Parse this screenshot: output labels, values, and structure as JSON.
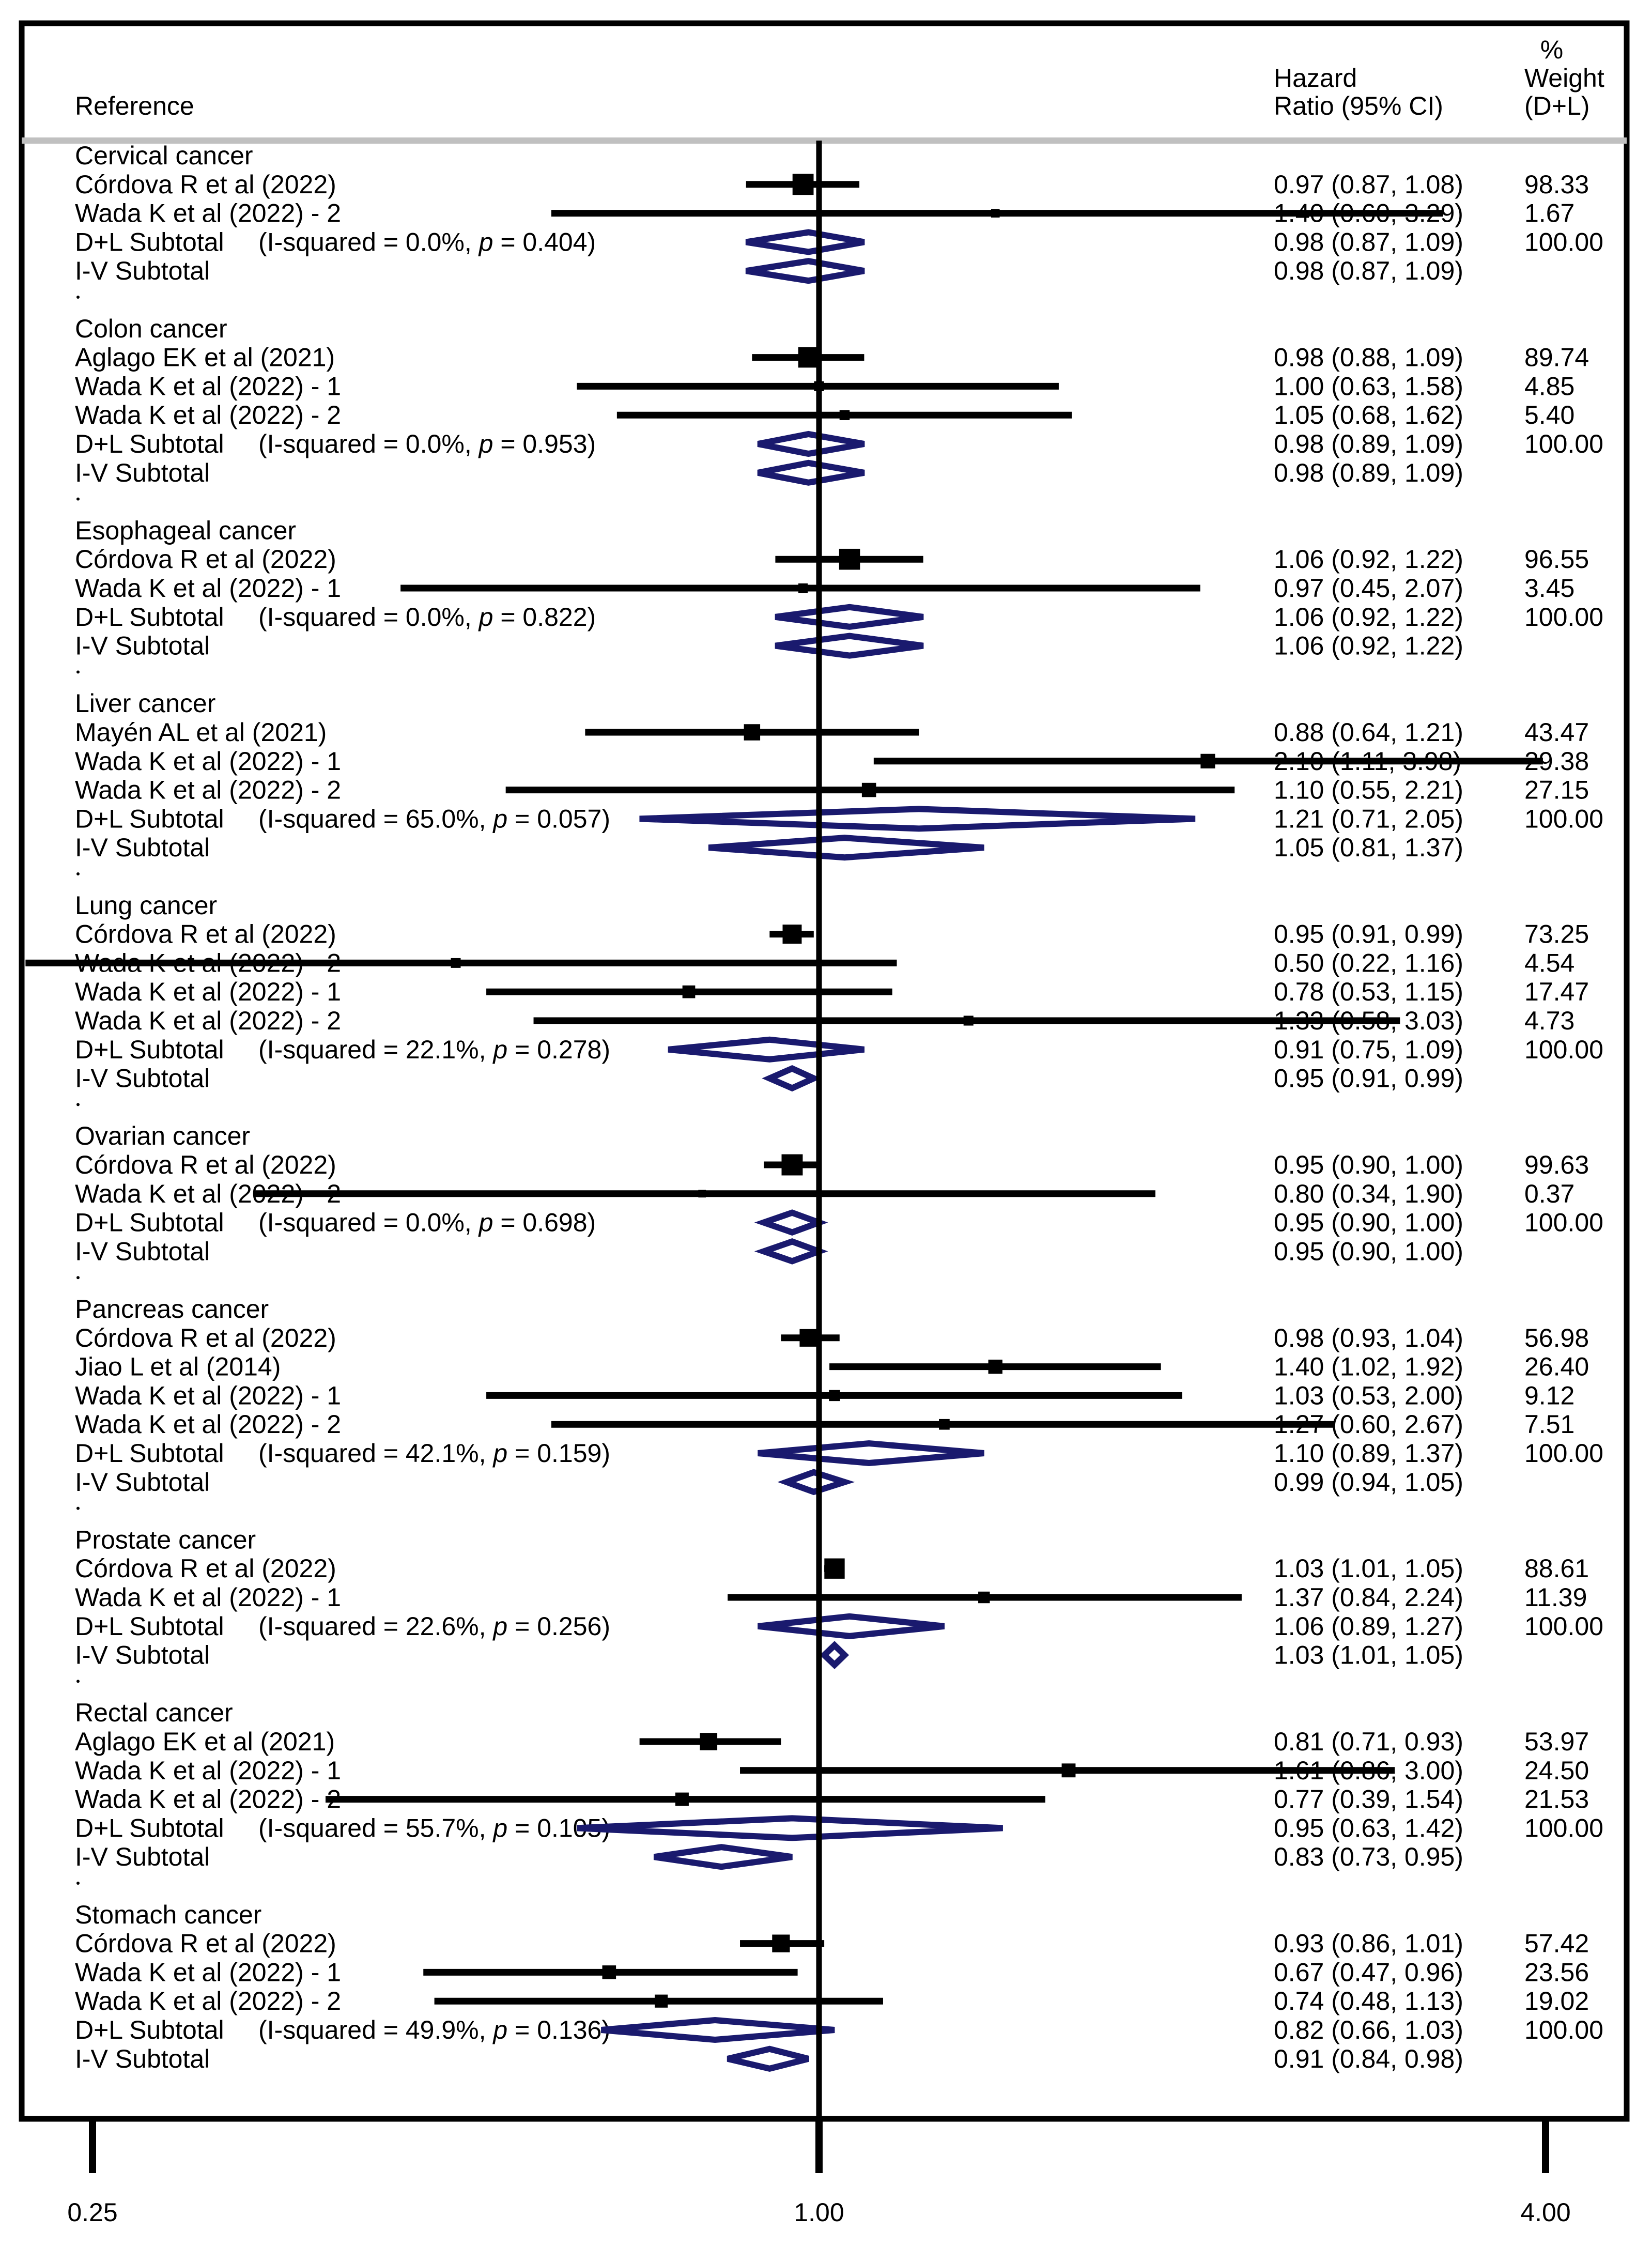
{
  "chart_data": {
    "type": "forest",
    "scale": "log",
    "null_value": 1.0,
    "x_ticks": [
      0.25,
      1.0,
      4.0
    ],
    "x_tick_labels": [
      "0.25",
      "1.00",
      "4.00"
    ],
    "xlim": [
      0.2,
      5.0
    ],
    "colors": {
      "study": "#000000",
      "diamond": "#1a1a6e",
      "frame": "#000000",
      "separator": "#c0c0c0"
    },
    "headers": {
      "reference": "Reference",
      "hr_line1": "Hazard",
      "hr_line2": "Ratio (95% CI)",
      "weight_line1": "%",
      "weight_line2": "Weight",
      "weight_line3": "(D+L)"
    },
    "groups": [
      {
        "title": "Cervical cancer",
        "studies": [
          {
            "label": "Córdova R et al (2022)",
            "hr": 0.97,
            "lo": 0.87,
            "hi": 1.08,
            "ci_text": "0.97 (0.87, 1.08)",
            "weight": "98.33"
          },
          {
            "label": "Wada K et al (2022) - 2",
            "hr": 1.4,
            "lo": 0.6,
            "hi": 3.29,
            "ci_text": "1.40 (0.60, 3.29)",
            "weight": "1.67"
          }
        ],
        "dl": {
          "label": "D+L Subtotal",
          "stat": "(I-squared = 0.0%, ",
          "p_label": "p",
          "p_value": " = 0.404)",
          "hr": 0.98,
          "lo": 0.87,
          "hi": 1.09,
          "ci_text": "0.98 (0.87, 1.09)",
          "weight": "100.00"
        },
        "iv": {
          "label": "I-V Subtotal",
          "hr": 0.98,
          "lo": 0.87,
          "hi": 1.09,
          "ci_text": "0.98 (0.87, 1.09)"
        }
      },
      {
        "title": "Colon cancer",
        "studies": [
          {
            "label": "Aglago EK et al (2021)",
            "hr": 0.98,
            "lo": 0.88,
            "hi": 1.09,
            "ci_text": "0.98 (0.88, 1.09)",
            "weight": "89.74"
          },
          {
            "label": "Wada K et al (2022) - 1",
            "hr": 1.0,
            "lo": 0.63,
            "hi": 1.58,
            "ci_text": "1.00 (0.63, 1.58)",
            "weight": "4.85"
          },
          {
            "label": "Wada K et al (2022) - 2",
            "hr": 1.05,
            "lo": 0.68,
            "hi": 1.62,
            "ci_text": "1.05 (0.68, 1.62)",
            "weight": "5.40"
          }
        ],
        "dl": {
          "label": "D+L Subtotal",
          "stat": "(I-squared = 0.0%, ",
          "p_label": "p",
          "p_value": " = 0.953)",
          "hr": 0.98,
          "lo": 0.89,
          "hi": 1.09,
          "ci_text": "0.98 (0.89, 1.09)",
          "weight": "100.00"
        },
        "iv": {
          "label": "I-V Subtotal",
          "hr": 0.98,
          "lo": 0.89,
          "hi": 1.09,
          "ci_text": "0.98 (0.89, 1.09)"
        }
      },
      {
        "title": "Esophageal cancer",
        "studies": [
          {
            "label": "Córdova R et al (2022)",
            "hr": 1.06,
            "lo": 0.92,
            "hi": 1.22,
            "ci_text": "1.06 (0.92, 1.22)",
            "weight": "96.55"
          },
          {
            "label": "Wada K et al (2022) - 1",
            "hr": 0.97,
            "lo": 0.45,
            "hi": 2.07,
            "ci_text": "0.97 (0.45, 2.07)",
            "weight": "3.45"
          }
        ],
        "dl": {
          "label": "D+L Subtotal",
          "stat": "(I-squared = 0.0%, ",
          "p_label": "p",
          "p_value": " = 0.822)",
          "hr": 1.06,
          "lo": 0.92,
          "hi": 1.22,
          "ci_text": "1.06 (0.92, 1.22)",
          "weight": "100.00"
        },
        "iv": {
          "label": "I-V Subtotal",
          "hr": 1.06,
          "lo": 0.92,
          "hi": 1.22,
          "ci_text": "1.06 (0.92, 1.22)"
        }
      },
      {
        "title": "Liver cancer",
        "studies": [
          {
            "label": "Mayén AL et al (2021)",
            "hr": 0.88,
            "lo": 0.64,
            "hi": 1.21,
            "ci_text": "0.88 (0.64, 1.21)",
            "weight": "43.47"
          },
          {
            "label": "Wada K et al (2022) - 1",
            "hr": 2.1,
            "lo": 1.11,
            "hi": 3.98,
            "ci_text": "2.10 (1.11, 3.98)",
            "weight": "29.38"
          },
          {
            "label": "Wada K et al (2022) - 2",
            "hr": 1.1,
            "lo": 0.55,
            "hi": 2.21,
            "ci_text": "1.10 (0.55, 2.21)",
            "weight": "27.15"
          }
        ],
        "dl": {
          "label": "D+L Subtotal",
          "stat": "(I-squared = 65.0%, ",
          "p_label": "p",
          "p_value": " = 0.057)",
          "hr": 1.21,
          "lo": 0.71,
          "hi": 2.05,
          "ci_text": "1.21 (0.71, 2.05)",
          "weight": "100.00"
        },
        "iv": {
          "label": "I-V Subtotal",
          "hr": 1.05,
          "lo": 0.81,
          "hi": 1.37,
          "ci_text": "1.05 (0.81, 1.37)"
        }
      },
      {
        "title": "Lung cancer",
        "studies": [
          {
            "label": "Córdova R et al (2022)",
            "hr": 0.95,
            "lo": 0.91,
            "hi": 0.99,
            "ci_text": "0.95 (0.91, 0.99)",
            "weight": "73.25"
          },
          {
            "label": "Wada K et al (2022) - 2",
            "hr": 0.5,
            "lo": 0.22,
            "hi": 1.16,
            "ci_text": "0.50 (0.22, 1.16)",
            "weight": "4.54"
          },
          {
            "label": "Wada K et al (2022) - 1",
            "hr": 0.78,
            "lo": 0.53,
            "hi": 1.15,
            "ci_text": "0.78 (0.53, 1.15)",
            "weight": "17.47"
          },
          {
            "label": "Wada K et al (2022) - 2",
            "hr": 1.33,
            "lo": 0.58,
            "hi": 3.03,
            "ci_text": "1.33 (0.58, 3.03)",
            "weight": "4.73"
          }
        ],
        "dl": {
          "label": "D+L Subtotal",
          "stat": "(I-squared = 22.1%, ",
          "p_label": "p",
          "p_value": " = 0.278)",
          "hr": 0.91,
          "lo": 0.75,
          "hi": 1.09,
          "ci_text": "0.91 (0.75, 1.09)",
          "weight": "100.00"
        },
        "iv": {
          "label": "I-V Subtotal",
          "hr": 0.95,
          "lo": 0.91,
          "hi": 0.99,
          "ci_text": "0.95 (0.91, 0.99)"
        }
      },
      {
        "title": "Ovarian cancer",
        "studies": [
          {
            "label": "Córdova R et al (2022)",
            "hr": 0.95,
            "lo": 0.9,
            "hi": 1.0,
            "ci_text": "0.95 (0.90, 1.00)",
            "weight": "99.63"
          },
          {
            "label": "Wada K et al (2022) - 2",
            "hr": 0.8,
            "lo": 0.34,
            "hi": 1.9,
            "ci_text": "0.80 (0.34, 1.90)",
            "weight": "0.37"
          }
        ],
        "dl": {
          "label": "D+L Subtotal",
          "stat": "(I-squared = 0.0%, ",
          "p_label": "p",
          "p_value": " = 0.698)",
          "hr": 0.95,
          "lo": 0.9,
          "hi": 1.0,
          "ci_text": "0.95 (0.90, 1.00)",
          "weight": "100.00"
        },
        "iv": {
          "label": "I-V Subtotal",
          "hr": 0.95,
          "lo": 0.9,
          "hi": 1.0,
          "ci_text": "0.95 (0.90, 1.00)"
        }
      },
      {
        "title": "Pancreas cancer",
        "studies": [
          {
            "label": "Córdova R et al (2022)",
            "hr": 0.98,
            "lo": 0.93,
            "hi": 1.04,
            "ci_text": "0.98 (0.93, 1.04)",
            "weight": "56.98"
          },
          {
            "label": "Jiao L et al (2014)",
            "hr": 1.4,
            "lo": 1.02,
            "hi": 1.92,
            "ci_text": "1.40 (1.02, 1.92)",
            "weight": "26.40"
          },
          {
            "label": "Wada K et al (2022) - 1",
            "hr": 1.03,
            "lo": 0.53,
            "hi": 2.0,
            "ci_text": "1.03 (0.53, 2.00)",
            "weight": "9.12"
          },
          {
            "label": "Wada K et al (2022) - 2",
            "hr": 1.27,
            "lo": 0.6,
            "hi": 2.67,
            "ci_text": "1.27 (0.60, 2.67)",
            "weight": "7.51"
          }
        ],
        "dl": {
          "label": "D+L Subtotal",
          "stat": "(I-squared = 42.1%, ",
          "p_label": "p",
          "p_value": " = 0.159)",
          "hr": 1.1,
          "lo": 0.89,
          "hi": 1.37,
          "ci_text": "1.10 (0.89, 1.37)",
          "weight": "100.00"
        },
        "iv": {
          "label": "I-V Subtotal",
          "hr": 0.99,
          "lo": 0.94,
          "hi": 1.05,
          "ci_text": "0.99 (0.94, 1.05)"
        }
      },
      {
        "title": "Prostate cancer",
        "studies": [
          {
            "label": "Córdova R et al (2022)",
            "hr": 1.03,
            "lo": 1.01,
            "hi": 1.05,
            "ci_text": "1.03 (1.01, 1.05)",
            "weight": "88.61"
          },
          {
            "label": "Wada K et al (2022) - 1",
            "hr": 1.37,
            "lo": 0.84,
            "hi": 2.24,
            "ci_text": "1.37 (0.84, 2.24)",
            "weight": "11.39"
          }
        ],
        "dl": {
          "label": "D+L Subtotal",
          "stat": "(I-squared = 22.6%, ",
          "p_label": "p",
          "p_value": " = 0.256)",
          "hr": 1.06,
          "lo": 0.89,
          "hi": 1.27,
          "ci_text": "1.06 (0.89, 1.27)",
          "weight": "100.00"
        },
        "iv": {
          "label": "I-V Subtotal",
          "hr": 1.03,
          "lo": 1.01,
          "hi": 1.05,
          "ci_text": "1.03 (1.01, 1.05)"
        }
      },
      {
        "title": "Rectal cancer",
        "studies": [
          {
            "label": "Aglago EK et al (2021)",
            "hr": 0.81,
            "lo": 0.71,
            "hi": 0.93,
            "ci_text": "0.81 (0.71, 0.93)",
            "weight": "53.97"
          },
          {
            "label": "Wada K et al (2022) - 1",
            "hr": 1.61,
            "lo": 0.86,
            "hi": 3.0,
            "ci_text": "1.61 (0.86, 3.00)",
            "weight": "24.50"
          },
          {
            "label": "Wada K et al (2022) - 2",
            "hr": 0.77,
            "lo": 0.39,
            "hi": 1.54,
            "ci_text": "0.77 (0.39, 1.54)",
            "weight": "21.53"
          }
        ],
        "dl": {
          "label": "D+L Subtotal",
          "stat": "(I-squared = 55.7%, ",
          "p_label": "p",
          "p_value": " = 0.105)",
          "hr": 0.95,
          "lo": 0.63,
          "hi": 1.42,
          "ci_text": "0.95 (0.63, 1.42)",
          "weight": "100.00"
        },
        "iv": {
          "label": "I-V Subtotal",
          "hr": 0.83,
          "lo": 0.73,
          "hi": 0.95,
          "ci_text": "0.83 (0.73, 0.95)"
        }
      },
      {
        "title": "Stomach cancer",
        "studies": [
          {
            "label": "Córdova R et al (2022)",
            "hr": 0.93,
            "lo": 0.86,
            "hi": 1.01,
            "ci_text": "0.93 (0.86, 1.01)",
            "weight": "57.42"
          },
          {
            "label": "Wada K et al (2022) - 1",
            "hr": 0.67,
            "lo": 0.47,
            "hi": 0.96,
            "ci_text": "0.67 (0.47, 0.96)",
            "weight": "23.56"
          },
          {
            "label": "Wada K et al (2022) - 2",
            "hr": 0.74,
            "lo": 0.48,
            "hi": 1.13,
            "ci_text": "0.74 (0.48, 1.13)",
            "weight": "19.02"
          }
        ],
        "dl": {
          "label": "D+L Subtotal",
          "stat": "(I-squared = 49.9%, ",
          "p_label": "p",
          "p_value": " = 0.136)",
          "hr": 0.82,
          "lo": 0.66,
          "hi": 1.03,
          "ci_text": "0.82 (0.66, 1.03)",
          "weight": "100.00"
        },
        "iv": {
          "label": "I-V Subtotal",
          "hr": 0.91,
          "lo": 0.84,
          "hi": 0.98,
          "ci_text": "0.91 (0.84, 0.98)"
        }
      }
    ]
  }
}
